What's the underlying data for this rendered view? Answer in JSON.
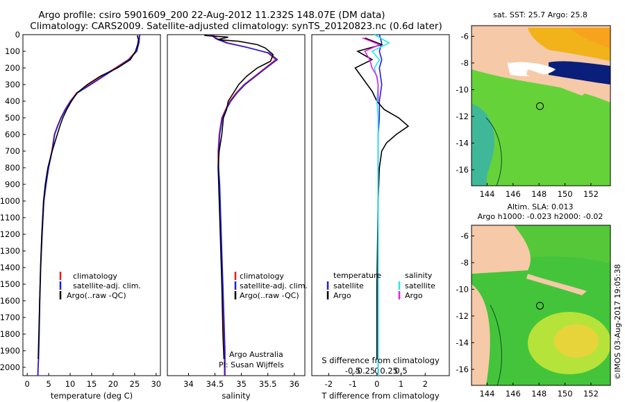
{
  "header": {
    "line1": "Argo profile: csiro 5901609_200 22-Aug-2012 11.232S 148.07E (DM data)",
    "line2": "Climatology: CARS2009. Satellite-adjusted climatology: synTS_20120823.nc (0.6d later)"
  },
  "colors": {
    "climatology": "#e81c1c",
    "satellite": "#1c1ce8",
    "argo": "#000000",
    "salinity_satellite": "#20e8f0",
    "salinity_argo": "#e820e8",
    "land": "#f6c9a8"
  },
  "chart_data": [
    {
      "type": "line",
      "name": "temperature-profile",
      "xlabel": "temperature (deg C)",
      "xlim": [
        -1,
        31
      ],
      "ylim": [
        2050,
        0
      ],
      "xticks": [
        0,
        5,
        10,
        15,
        20,
        25,
        30
      ],
      "yticks": [
        0,
        100,
        200,
        300,
        400,
        500,
        600,
        700,
        800,
        900,
        1000,
        1100,
        1200,
        1300,
        1400,
        1500,
        1600,
        1700,
        1800,
        1900,
        2000
      ],
      "legend": [
        "climatology",
        "satellite-adj. clim.",
        "Argo(..raw -QC)"
      ],
      "series": [
        {
          "name": "climatology",
          "color_key": "climatology",
          "x": [
            26.1,
            26.0,
            25.9,
            25.3,
            23.5,
            20.5,
            17.5,
            14.5,
            11.5,
            10.0,
            8.8,
            7.8,
            7.0,
            6.3,
            5.7,
            4.9,
            4.3,
            3.8,
            3.4,
            3.1,
            2.9,
            2.75,
            2.6,
            2.5,
            2.45
          ],
          "y": [
            0,
            25,
            50,
            100,
            150,
            200,
            250,
            300,
            350,
            400,
            450,
            500,
            550,
            600,
            700,
            800,
            900,
            1000,
            1200,
            1400,
            1600,
            1800,
            1950,
            2000,
            2050
          ]
        },
        {
          "name": "satellite-adj. clim.",
          "color_key": "satellite",
          "x": [
            26.2,
            26.1,
            26.0,
            25.5,
            23.7,
            20.8,
            17.8,
            14.8,
            11.7,
            10.1,
            8.9,
            7.9,
            7.1,
            6.4,
            5.8,
            5.0,
            4.4,
            3.9,
            3.5,
            3.15,
            2.95,
            2.8,
            2.65,
            2.55,
            2.5
          ],
          "y": [
            0,
            25,
            50,
            100,
            150,
            200,
            250,
            300,
            350,
            400,
            450,
            500,
            550,
            600,
            700,
            800,
            900,
            1000,
            1200,
            1400,
            1600,
            1800,
            1950,
            2000,
            2050
          ]
        },
        {
          "name": "Argo(..raw -QC)",
          "color_key": "argo",
          "x": [
            25.6,
            25.9,
            25.7,
            25.2,
            24.0,
            21.0,
            17.0,
            14.0,
            11.6,
            10.3,
            9.2,
            8.3,
            7.6,
            7.0,
            6.4,
            5.8,
            4.8,
            4.2,
            3.8,
            3.4,
            3.1,
            2.9,
            2.7,
            2.55
          ],
          "y": [
            5,
            30,
            60,
            100,
            150,
            200,
            250,
            300,
            350,
            400,
            450,
            500,
            550,
            600,
            650,
            700,
            800,
            900,
            1000,
            1200,
            1400,
            1600,
            1800,
            1950
          ]
        }
      ]
    },
    {
      "type": "line",
      "name": "salinity-profile",
      "xlabel": "salinity",
      "xlim": [
        33.6,
        36.2
      ],
      "ylim": [
        2050,
        0
      ],
      "xticks": [
        34,
        34.5,
        35,
        35.5,
        36
      ],
      "legend": [
        "climatology",
        "satellite-adj. clim.",
        "Argo(..raw -QC)"
      ],
      "annotation": [
        "Argo Australia",
        "PI: Susan Wijffels"
      ],
      "series": [
        {
          "name": "climatology",
          "color_key": "climatology",
          "x": [
            34.45,
            34.55,
            34.75,
            35.1,
            35.5,
            35.65,
            35.45,
            35.25,
            35.05,
            34.9,
            34.78,
            34.7,
            34.63,
            34.58,
            34.56,
            34.56,
            34.58,
            34.6,
            34.62,
            34.64,
            34.66,
            34.68,
            34.68
          ],
          "y": [
            0,
            25,
            50,
            75,
            110,
            150,
            200,
            250,
            300,
            350,
            400,
            450,
            500,
            600,
            700,
            800,
            900,
            1100,
            1300,
            1500,
            1700,
            1900,
            2050
          ]
        },
        {
          "name": "satellite-adj. clim.",
          "color_key": "satellite",
          "x": [
            34.42,
            34.52,
            34.72,
            35.08,
            35.52,
            35.68,
            35.47,
            35.27,
            35.07,
            34.92,
            34.8,
            34.71,
            34.64,
            34.59,
            34.57,
            34.57,
            34.59,
            34.61,
            34.63,
            34.65,
            34.67,
            34.69,
            34.69
          ],
          "y": [
            0,
            25,
            50,
            75,
            110,
            150,
            200,
            250,
            300,
            350,
            400,
            450,
            500,
            600,
            700,
            800,
            900,
            1100,
            1300,
            1500,
            1700,
            1900,
            2050
          ]
        },
        {
          "name": "Argo(..raw -QC)",
          "color_key": "argo",
          "x": [
            34.3,
            34.75,
            34.55,
            34.95,
            35.3,
            35.45,
            35.6,
            35.55,
            35.3,
            35.1,
            34.95,
            34.85,
            34.75,
            34.72,
            34.66,
            34.63,
            34.58,
            34.56,
            34.57,
            34.6,
            34.63,
            34.65,
            34.67
          ],
          "y": [
            5,
            15,
            30,
            40,
            60,
            80,
            120,
            160,
            200,
            250,
            300,
            350,
            400,
            450,
            500,
            600,
            700,
            800,
            900,
            1200,
            1500,
            1800,
            1950
          ]
        }
      ]
    },
    {
      "type": "line",
      "name": "difference-profile",
      "xlabel": "T difference from climatology",
      "x2label": "S difference from climatology",
      "xlim": [
        -2.7,
        3.0
      ],
      "ylim": [
        2050,
        0
      ],
      "xticks": [
        -2,
        -1,
        0,
        1,
        2
      ],
      "x2ticks": [
        "-0.5",
        "-0.25",
        "0",
        "0.25",
        "0.5"
      ],
      "legend_temperature": [
        "temperature",
        "satellite",
        "Argo"
      ],
      "legend_salinity": [
        "salinity",
        "satellite",
        "Argo"
      ],
      "series": [
        {
          "name": "temperature satellite",
          "color_key": "satellite",
          "x": [
            0.1,
            0.2,
            0.1,
            0.2,
            0.1,
            0.2,
            0.1,
            0.1,
            0.05,
            0.05,
            0.05,
            0.05,
            0.05,
            0.05
          ],
          "y": [
            0,
            50,
            100,
            150,
            200,
            300,
            400,
            500,
            600,
            800,
            1000,
            1400,
            1800,
            2050
          ]
        },
        {
          "name": "temperature Argo",
          "color_key": "argo",
          "x": [
            -0.5,
            0.2,
            -0.8,
            -0.2,
            -0.9,
            -0.6,
            -0.2,
            0,
            0.3,
            0.9,
            1.3,
            0.8,
            0.4,
            0.2,
            0.1,
            0.05,
            0,
            0
          ],
          "y": [
            20,
            60,
            100,
            150,
            200,
            260,
            340,
            400,
            450,
            500,
            550,
            600,
            650,
            700,
            800,
            1000,
            1500,
            1950
          ]
        },
        {
          "name": "salinity satellite",
          "color_key": "salinity_satellite",
          "x": [
            -0.1,
            0.5,
            -0.2,
            0.1,
            -0.1,
            0.05,
            0,
            0.05,
            0.05,
            0.05,
            0.05,
            0.05,
            0.05,
            0.05
          ],
          "y": [
            0,
            50,
            100,
            150,
            200,
            300,
            400,
            500,
            600,
            800,
            1000,
            1400,
            1800,
            2050
          ]
        },
        {
          "name": "salinity Argo",
          "color_key": "salinity_argo",
          "x": [
            -0.6,
            0.1,
            -0.5,
            -0.3,
            -0.2,
            0,
            0.05,
            0.05
          ],
          "y": [
            20,
            60,
            100,
            150,
            200,
            250,
            300,
            400
          ]
        }
      ]
    },
    {
      "type": "heatmap",
      "name": "sst-map",
      "title": "sat. SST: 25.7 Argo: 25.8",
      "xticks": [
        144,
        146,
        148,
        150,
        152
      ],
      "yticks": [
        -6,
        -8,
        -10,
        -12,
        -14,
        -16
      ],
      "xlim": [
        142.8,
        153.5
      ],
      "ylim": [
        -17.2,
        -5.2
      ],
      "marker": {
        "lon": 148.07,
        "lat": -11.232
      }
    },
    {
      "type": "heatmap",
      "name": "sla-map",
      "title": "Altim. SLA: 0.013",
      "subtitle": "Argo h1000: -0.023 h2000: -0.02",
      "xticks": [
        144,
        146,
        148,
        150,
        152
      ],
      "yticks": [
        -6,
        -8,
        -10,
        -12,
        -14,
        -16
      ],
      "xlim": [
        142.8,
        153.5
      ],
      "ylim": [
        -17.2,
        -5.2
      ],
      "marker": {
        "lon": 148.07,
        "lat": -11.232
      }
    }
  ],
  "credit": "©IMOS 03-Aug-2017 19:05:38"
}
